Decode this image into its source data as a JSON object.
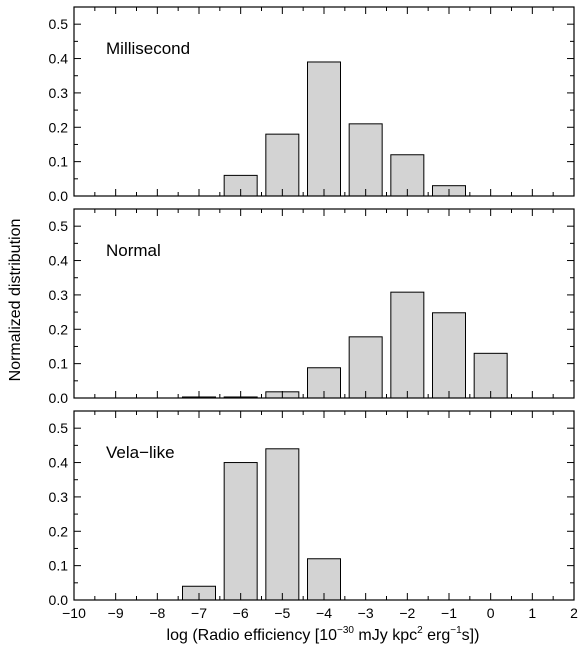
{
  "chart_data": [
    {
      "type": "bar",
      "label": "Millisecond",
      "x": [
        -10,
        -9,
        -8,
        -7,
        -6,
        -5,
        -4,
        -3,
        -2,
        -1,
        0,
        1
      ],
      "values": [
        0,
        0,
        0,
        0,
        0.06,
        0.18,
        0.39,
        0.21,
        0.12,
        0.03,
        0,
        0
      ],
      "ylim": [
        0,
        0.55
      ],
      "yticks": [
        0.0,
        0.1,
        0.2,
        0.3,
        0.4,
        0.5
      ]
    },
    {
      "type": "bar",
      "label": "Normal",
      "x": [
        -10,
        -9,
        -8,
        -7,
        -6,
        -5,
        -4,
        -3,
        -2,
        -1,
        0,
        1
      ],
      "values": [
        0,
        0,
        0,
        0.003,
        0.003,
        0.018,
        0.088,
        0.178,
        0.308,
        0.248,
        0.13,
        0
      ],
      "ylim": [
        0,
        0.55
      ],
      "yticks": [
        0.0,
        0.1,
        0.2,
        0.3,
        0.4,
        0.5
      ]
    },
    {
      "type": "bar",
      "label": "Vela−like",
      "x": [
        -10,
        -9,
        -8,
        -7,
        -6,
        -5,
        -4,
        -3,
        -2,
        -1,
        0,
        1
      ],
      "values": [
        0,
        0,
        0,
        0.04,
        0.4,
        0.44,
        0.12,
        0,
        0,
        0,
        0,
        0
      ],
      "ylim": [
        0,
        0.55
      ],
      "yticks": [
        0.0,
        0.1,
        0.2,
        0.3,
        0.4,
        0.5
      ]
    }
  ],
  "axes": {
    "xlim": [
      -10,
      2
    ],
    "xticks": [
      -10,
      -9,
      -8,
      -7,
      -6,
      -5,
      -4,
      -3,
      -2,
      -1,
      0,
      1,
      2
    ],
    "xtick_labels": [
      "−10",
      "−9",
      "−8",
      "−7",
      "−6",
      "−5",
      "−4",
      "−3",
      "−2",
      "−1",
      "0",
      "1",
      "2"
    ],
    "ytick_labels": [
      "0.0",
      "0.1",
      "0.2",
      "0.3",
      "0.4",
      "0.5"
    ],
    "ylabel": "Normalized distribution",
    "xlabel_parts": {
      "a": "log (Radio efficiency [10",
      "sup1": "−30",
      "b": " mJy kpc",
      "sup2": "2",
      "c": " erg",
      "sup3": "−1",
      "d": "s])"
    },
    "bar_color": "#d3d3d3",
    "grid": false
  }
}
